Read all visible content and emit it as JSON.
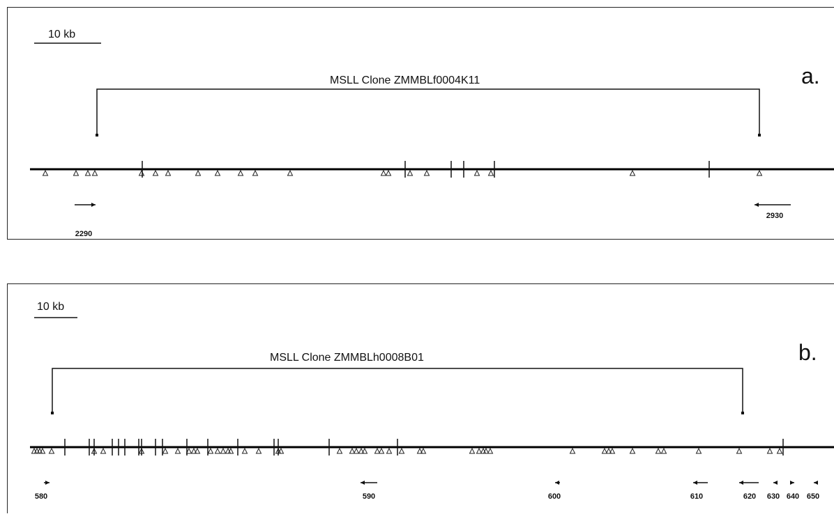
{
  "panels": [
    {
      "id": "a",
      "letter": "a.",
      "scale_label": "10 kb",
      "clone_label": "MSLL Clone ZMMBLf0004K11",
      "primers": [
        {
          "label": "2290",
          "direction": "right"
        },
        {
          "label": "2930",
          "direction": "left"
        }
      ]
    },
    {
      "id": "b",
      "letter": "b.",
      "scale_label": "10 kb",
      "clone_label": "MSLL Clone ZMMBLh0008B01",
      "primers": [
        {
          "label": "580",
          "direction": "right"
        },
        {
          "label": "590",
          "direction": "left"
        },
        {
          "label": "600",
          "direction": "left"
        },
        {
          "label": "610",
          "direction": "left"
        },
        {
          "label": "620",
          "direction": "left"
        },
        {
          "label": "630",
          "direction": "left"
        },
        {
          "label": "640",
          "direction": "right"
        },
        {
          "label": "650",
          "direction": "left"
        }
      ]
    }
  ]
}
